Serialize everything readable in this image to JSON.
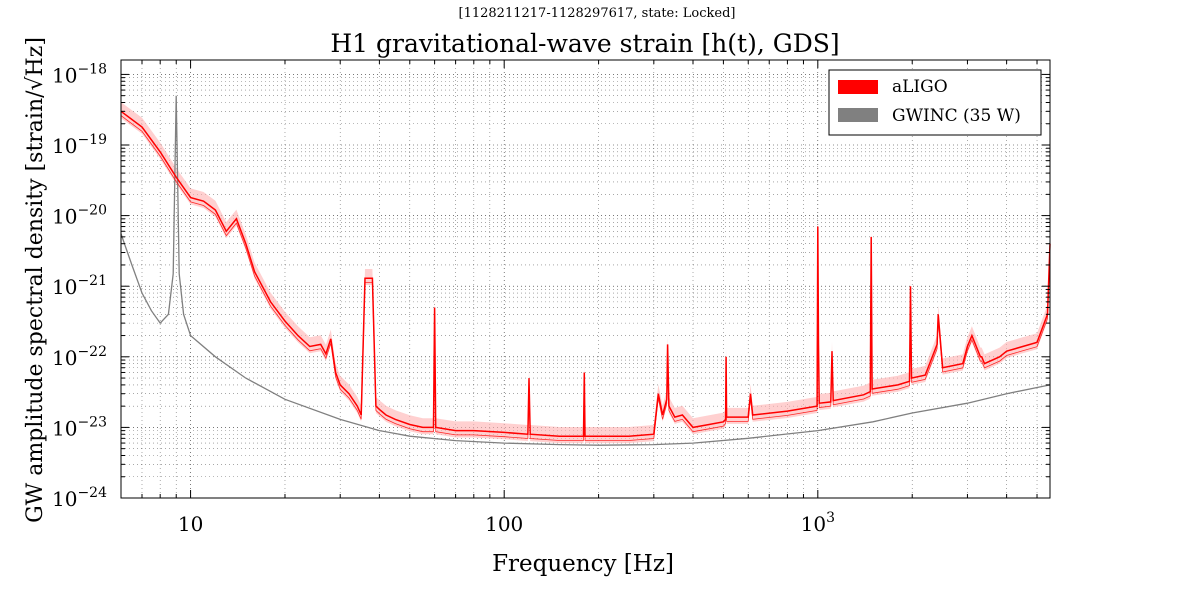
{
  "chart_data": {
    "type": "line",
    "subtitle": "[1128211217-1128297617, state: Locked]",
    "title": "H1 gravitational-wave strain [h(t), GDS]",
    "xlabel": "Frequency [Hz]",
    "ylabel": "GW amplitude spectral density [strain/√Hz]",
    "x_scale": "log",
    "y_scale": "log",
    "xlim": [
      6,
      5500
    ],
    "ylim": [
      1e-24,
      1.6e-18
    ],
    "grid": true,
    "legend_position": "top-right",
    "x_ticks": [
      {
        "value": 10,
        "label": "10"
      },
      {
        "value": 100,
        "label": "100"
      },
      {
        "value": 1000,
        "label": "10",
        "exponent": "3"
      }
    ],
    "y_ticks": [
      {
        "value": 1e-24,
        "label": "10",
        "exponent": "−24"
      },
      {
        "value": 1e-23,
        "label": "10",
        "exponent": "−23"
      },
      {
        "value": 1e-22,
        "label": "10",
        "exponent": "−22"
      },
      {
        "value": 1e-21,
        "label": "10",
        "exponent": "−21"
      },
      {
        "value": 1e-20,
        "label": "10",
        "exponent": "−20"
      },
      {
        "value": 1e-19,
        "label": "10",
        "exponent": "−19"
      },
      {
        "value": 1e-18,
        "label": "10",
        "exponent": "−18"
      }
    ],
    "series": [
      {
        "name": "aLIGO",
        "color": "#ff0000",
        "band_color": "#ffb0b0",
        "points": [
          [
            6,
            3e-19
          ],
          [
            7,
            1.8e-19
          ],
          [
            8,
            8e-20
          ],
          [
            9,
            3.5e-20
          ],
          [
            10,
            1.8e-20
          ],
          [
            11,
            1.6e-20
          ],
          [
            12,
            1.2e-20
          ],
          [
            13,
            6e-21
          ],
          [
            14,
            9e-21
          ],
          [
            15,
            4e-21
          ],
          [
            16,
            1.6e-21
          ],
          [
            18,
            6e-22
          ],
          [
            20,
            3.2e-22
          ],
          [
            22,
            2e-22
          ],
          [
            24,
            1.4e-22
          ],
          [
            26,
            1.5e-22
          ],
          [
            27,
            1.1e-22
          ],
          [
            28,
            1.8e-22
          ],
          [
            29,
            6e-23
          ],
          [
            30,
            4e-23
          ],
          [
            32,
            3e-23
          ],
          [
            34,
            2e-23
          ],
          [
            35,
            1.5e-23
          ],
          [
            36,
            1.3e-21
          ],
          [
            38,
            1.3e-21
          ],
          [
            39,
            2e-23
          ],
          [
            40,
            1.8e-23
          ],
          [
            42,
            1.5e-23
          ],
          [
            45,
            1.3e-23
          ],
          [
            50,
            1.1e-23
          ],
          [
            55,
            1e-23
          ],
          [
            59.5,
            1e-23
          ],
          [
            60,
            5e-22
          ],
          [
            60.5,
            1e-23
          ],
          [
            70,
            9e-24
          ],
          [
            80,
            9e-24
          ],
          [
            100,
            8.5e-24
          ],
          [
            119,
            8e-24
          ],
          [
            120,
            5e-23
          ],
          [
            121,
            8e-24
          ],
          [
            150,
            7.5e-24
          ],
          [
            179,
            7.5e-24
          ],
          [
            180,
            6e-23
          ],
          [
            181,
            7.5e-24
          ],
          [
            250,
            7.5e-24
          ],
          [
            300,
            8e-24
          ],
          [
            310,
            3e-23
          ],
          [
            320,
            1.5e-23
          ],
          [
            330,
            2.5e-23
          ],
          [
            332,
            1.5e-22
          ],
          [
            335,
            2e-23
          ],
          [
            350,
            1.4e-23
          ],
          [
            370,
            1.5e-23
          ],
          [
            400,
            1e-23
          ],
          [
            450,
            1.1e-23
          ],
          [
            500,
            1.2e-23
          ],
          [
            508,
            1.3e-23
          ],
          [
            510,
            1e-22
          ],
          [
            512,
            1.4e-23
          ],
          [
            600,
            1.4e-23
          ],
          [
            610,
            3e-23
          ],
          [
            620,
            1.5e-23
          ],
          [
            800,
            1.7e-23
          ],
          [
            995,
            2e-23
          ],
          [
            1000,
            7e-21
          ],
          [
            1005,
            1.5e-22
          ],
          [
            1010,
            2.2e-23
          ],
          [
            1100,
            2.3e-23
          ],
          [
            1110,
            1.2e-22
          ],
          [
            1120,
            2.4e-23
          ],
          [
            1400,
            2.9e-23
          ],
          [
            1470,
            3.2e-23
          ],
          [
            1480,
            5e-21
          ],
          [
            1490,
            3.5e-23
          ],
          [
            1800,
            4e-23
          ],
          [
            1960,
            4.5e-23
          ],
          [
            1975,
            1e-21
          ],
          [
            1990,
            5e-23
          ],
          [
            2200,
            5.5e-23
          ],
          [
            2400,
            1.5e-22
          ],
          [
            2420,
            4e-22
          ],
          [
            2500,
            7e-23
          ],
          [
            2900,
            8e-23
          ],
          [
            3000,
            1.4e-22
          ],
          [
            3100,
            2e-22
          ],
          [
            3300,
            1e-22
          ],
          [
            3330,
            1e-22
          ],
          [
            3400,
            8e-23
          ],
          [
            3800,
            1e-22
          ],
          [
            4000,
            1.2e-22
          ],
          [
            4500,
            1.4e-22
          ],
          [
            5000,
            1.6e-22
          ],
          [
            5400,
            4e-22
          ],
          [
            5500,
            4e-21
          ]
        ]
      },
      {
        "name": "GWINC (35 W)",
        "color": "#808080",
        "points": [
          [
            6,
            5.5e-21
          ],
          [
            6.5,
            2e-21
          ],
          [
            7,
            8e-22
          ],
          [
            7.5,
            4.5e-22
          ],
          [
            8,
            3e-22
          ],
          [
            8.5,
            4e-22
          ],
          [
            8.8,
            1.5e-21
          ],
          [
            9,
            5e-19
          ],
          [
            9.2,
            1.5e-21
          ],
          [
            9.5,
            4e-22
          ],
          [
            10,
            2e-22
          ],
          [
            12,
            1e-22
          ],
          [
            15,
            5e-23
          ],
          [
            20,
            2.5e-23
          ],
          [
            30,
            1.3e-23
          ],
          [
            40,
            9e-24
          ],
          [
            50,
            7.5e-24
          ],
          [
            70,
            6.5e-24
          ],
          [
            100,
            6e-24
          ],
          [
            150,
            5.7e-24
          ],
          [
            200,
            5.6e-24
          ],
          [
            300,
            5.7e-24
          ],
          [
            400,
            6e-24
          ],
          [
            600,
            7e-24
          ],
          [
            1000,
            9e-24
          ],
          [
            1500,
            1.2e-23
          ],
          [
            2000,
            1.6e-23
          ],
          [
            3000,
            2.2e-23
          ],
          [
            4000,
            3e-23
          ],
          [
            5500,
            4e-23
          ]
        ]
      }
    ]
  }
}
